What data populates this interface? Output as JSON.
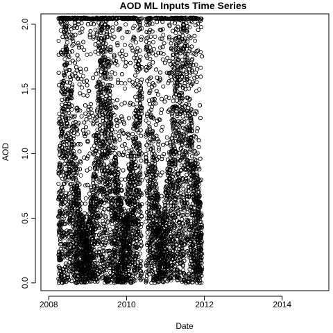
{
  "chart_data": {
    "type": "scatter",
    "title": "AOD ML Inputs Time Series",
    "xlabel": "Date",
    "ylabel": "AOD",
    "xlim": [
      "2007-10-20",
      "2015-03-15"
    ],
    "ylim": [
      -0.06,
      2.08
    ],
    "x_ticks": [
      "2008",
      "2010",
      "2012",
      "2014"
    ],
    "y_ticks": [
      "0.0",
      "0.5",
      "1.0",
      "1.5",
      "2.0"
    ],
    "marker": "open-circle",
    "grid": false,
    "data_range": {
      "x": [
        "2008-04-01",
        "2011-12-10"
      ],
      "y": [
        0.0,
        2.05
      ]
    },
    "envelope": [
      {
        "date": "2008-04-01",
        "max_dense_aod": 0.9
      },
      {
        "date": "2008-05-15",
        "max_dense_aod": 1.6
      },
      {
        "date": "2008-06-20",
        "max_dense_aod": 1.82
      },
      {
        "date": "2008-08-01",
        "max_dense_aod": 1.45
      },
      {
        "date": "2008-09-15",
        "max_dense_aod": 0.92
      },
      {
        "date": "2008-11-01",
        "max_dense_aod": 0.55
      },
      {
        "date": "2009-01-01",
        "max_dense_aod": 0.42
      },
      {
        "date": "2009-03-01",
        "max_dense_aod": 0.9
      },
      {
        "date": "2009-05-01",
        "max_dense_aod": 1.82
      },
      {
        "date": "2009-06-15",
        "max_dense_aod": 1.82
      },
      {
        "date": "2009-08-15",
        "max_dense_aod": 1.3
      },
      {
        "date": "2009-10-15",
        "max_dense_aod": 0.8
      },
      {
        "date": "2009-12-15",
        "max_dense_aod": 0.45
      },
      {
        "date": "2010-02-01",
        "max_dense_aod": 0.95
      },
      {
        "date": "2010-03-15",
        "max_dense_aod": 1.3
      },
      {
        "date": "2010-05-20",
        "max_dense_aod": 1.6
      },
      {
        "date": "2010-06-15",
        "max_dense_aod": 1.72
      },
      {
        "date": "2010-07-20",
        "max_dense_aod": 1.82
      },
      {
        "date": "2010-09-01",
        "max_dense_aod": 1.2
      },
      {
        "date": "2010-10-20",
        "max_dense_aod": 0.7
      },
      {
        "date": "2010-12-01",
        "max_dense_aod": 0.45
      },
      {
        "date": "2011-02-01",
        "max_dense_aod": 1.0
      },
      {
        "date": "2011-04-15",
        "max_dense_aod": 1.7
      },
      {
        "date": "2011-06-01",
        "max_dense_aod": 1.82
      },
      {
        "date": "2011-07-20",
        "max_dense_aod": 1.7
      },
      {
        "date": "2011-09-01",
        "max_dense_aod": 1.3
      },
      {
        "date": "2011-10-15",
        "max_dense_aod": 0.95
      },
      {
        "date": "2011-12-10",
        "max_dense_aod": 0.5
      }
    ],
    "gaps": [
      [
        "2010-05-25",
        "2010-07-01"
      ]
    ],
    "points_total": 9000
  }
}
